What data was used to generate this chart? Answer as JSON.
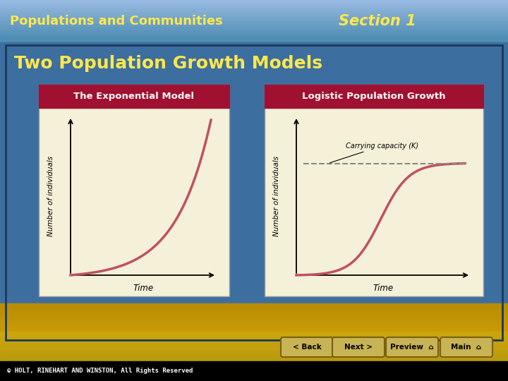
{
  "title_left": "Populations and Communities",
  "title_right": "Section 1",
  "subtitle": "Two Population Growth Models",
  "title_color": "#FFE84B",
  "section_color": "#FFE84B",
  "subtitle_color": "#FFE84B",
  "bg_sky_color": "#6EA8CC",
  "bg_main_color": "#3D6EA0",
  "bg_bottom_color": "#C8A020",
  "panel_bg": "#F5F0D8",
  "panel_header_color": "#A01030",
  "panel_header_text": "#FFFFFF",
  "graph1_title": "The Exponential Model",
  "graph2_title": "Logistic Population Growth",
  "graph1_xlabel": "Time",
  "graph2_xlabel": "Time",
  "graph1_ylabel": "Number of individuals",
  "graph2_ylabel": "Number of individuals",
  "curve_color": "#C05060",
  "dashed_color": "#888888",
  "carrying_capacity_label": "Carrying capacity (K)",
  "footer_text": "© HOLT, RINEHART AND WINSTON, All Rights Reserved",
  "button_labels": [
    "< Back",
    "Next >",
    "Preview  ⌂",
    "Main  ⌂"
  ],
  "button_color": "#C8B454",
  "button_text_color": "#000000",
  "border_color": "#1A3A5A"
}
